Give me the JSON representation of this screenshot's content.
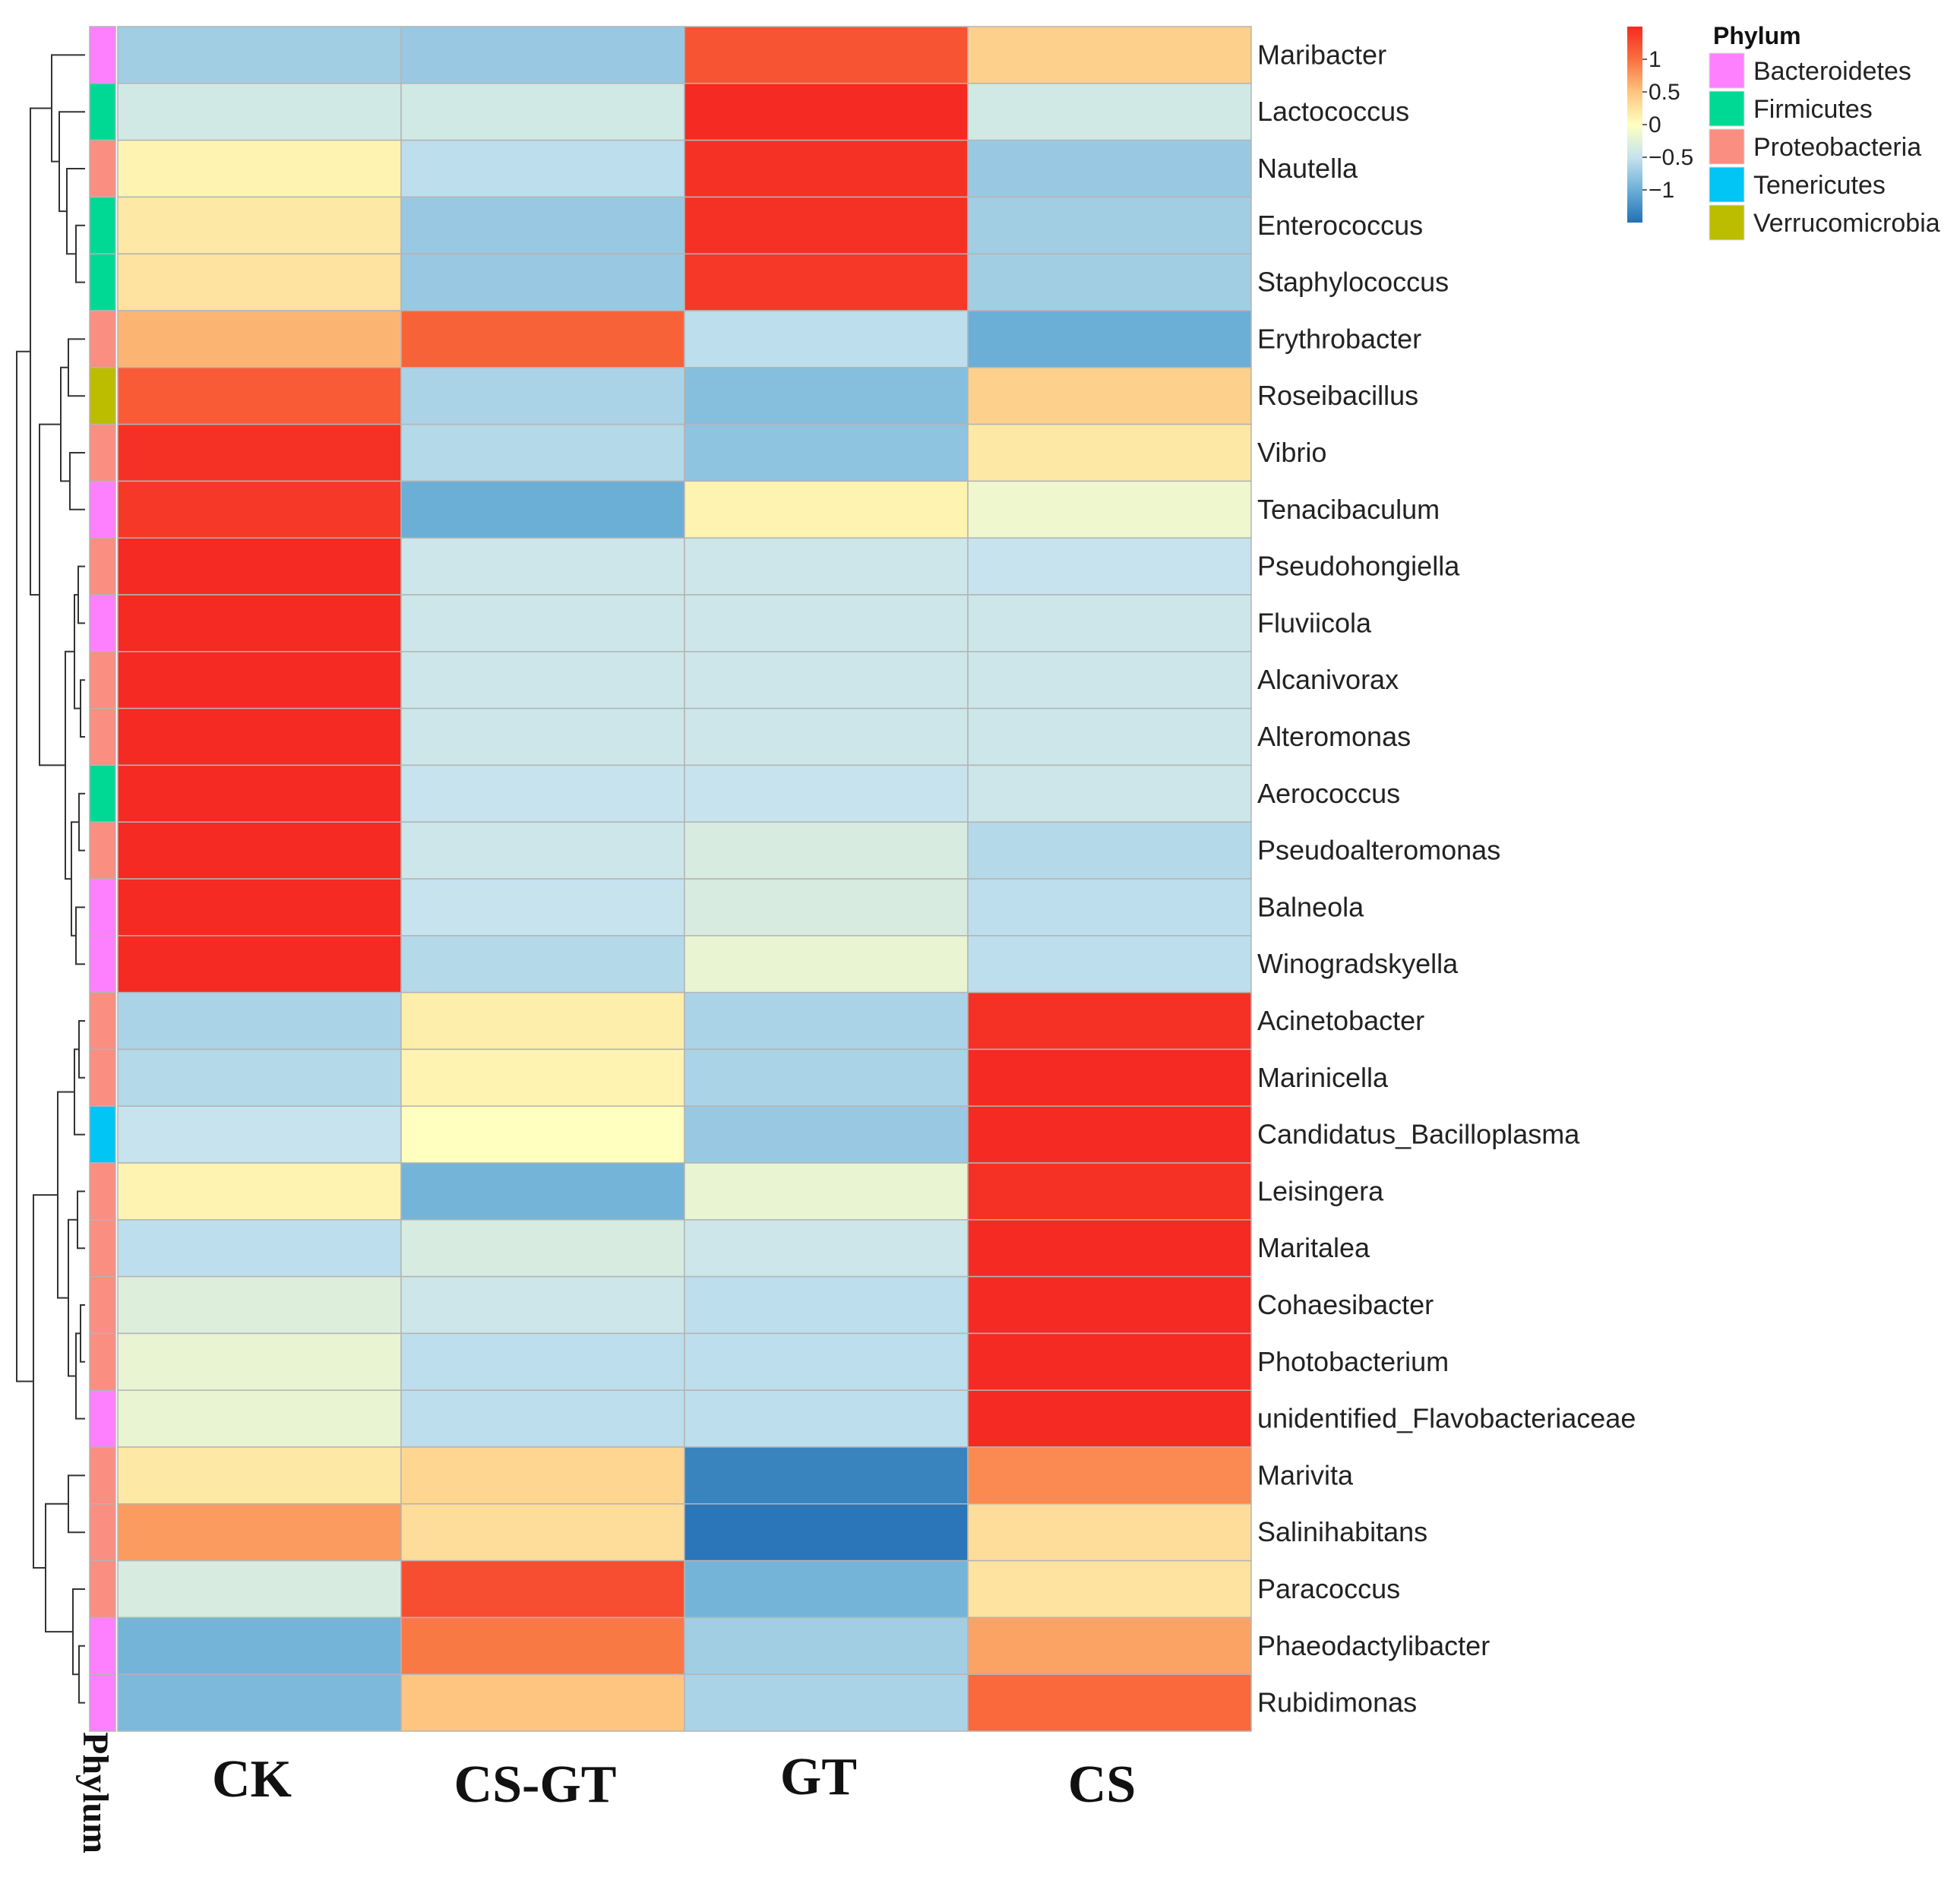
{
  "chart_data": {
    "type": "heatmap",
    "columns": [
      "CK",
      "CS-GT",
      "GT",
      "CS"
    ],
    "rows": [
      "Maribacter",
      "Lactococcus",
      "Nautella",
      "Enterococcus",
      "Staphylococcus",
      "Erythrobacter",
      "Roseibacillus",
      "Vibrio",
      "Tenacibaculum",
      "Pseudohongiella",
      "Fluviicola",
      "Alcanivorax",
      "Alteromonas",
      "Aerococcus",
      "Pseudoalteromonas",
      "Balneola",
      "Winogradskyella",
      "Acinetobacter",
      "Marinicella",
      "Candidatus_Bacilloplasma",
      "Leisingera",
      "Maritalea",
      "Cohaesibacter",
      "Photobacterium",
      "unidentified_Flavobacteriaceae",
      "Marivita",
      "Salinihabitans",
      "Paracoccus",
      "Phaeodactylibacter",
      "Rubidimonas"
    ],
    "phylum": [
      "Bacteroidetes",
      "Firmicutes",
      "Proteobacteria",
      "Firmicutes",
      "Firmicutes",
      "Proteobacteria",
      "Verrucomicrobia",
      "Proteobacteria",
      "Bacteroidetes",
      "Proteobacteria",
      "Bacteroidetes",
      "Proteobacteria",
      "Proteobacteria",
      "Firmicutes",
      "Proteobacteria",
      "Bacteroidetes",
      "Bacteroidetes",
      "Proteobacteria",
      "Proteobacteria",
      "Tenericutes",
      "Proteobacteria",
      "Proteobacteria",
      "Proteobacteria",
      "Proteobacteria",
      "Bacteroidetes",
      "Proteobacteria",
      "Proteobacteria",
      "Proteobacteria",
      "Bacteroidetes",
      "Bacteroidetes"
    ],
    "values": [
      [
        -0.7,
        -0.75,
        1.2,
        0.4
      ],
      [
        -0.4,
        -0.4,
        1.5,
        -0.4
      ],
      [
        0.1,
        -0.55,
        1.45,
        -0.75
      ],
      [
        0.2,
        -0.75,
        1.45,
        -0.7
      ],
      [
        0.25,
        -0.75,
        1.4,
        -0.7
      ],
      [
        0.6,
        1.1,
        -0.55,
        -1.0
      ],
      [
        1.15,
        -0.65,
        -0.85,
        0.4
      ],
      [
        1.45,
        -0.6,
        -0.8,
        0.2
      ],
      [
        1.4,
        -1.0,
        0.1,
        -0.15
      ],
      [
        1.5,
        -0.45,
        -0.45,
        -0.5
      ],
      [
        1.5,
        -0.45,
        -0.45,
        -0.45
      ],
      [
        1.5,
        -0.45,
        -0.45,
        -0.45
      ],
      [
        1.5,
        -0.45,
        -0.45,
        -0.45
      ],
      [
        1.5,
        -0.5,
        -0.5,
        -0.45
      ],
      [
        1.5,
        -0.45,
        -0.35,
        -0.6
      ],
      [
        1.5,
        -0.5,
        -0.35,
        -0.55
      ],
      [
        1.5,
        -0.6,
        -0.2,
        -0.55
      ],
      [
        -0.65,
        0.15,
        -0.65,
        1.45
      ],
      [
        -0.6,
        0.1,
        -0.65,
        1.5
      ],
      [
        -0.5,
        0.0,
        -0.75,
        1.5
      ],
      [
        0.1,
        -0.95,
        -0.2,
        1.45
      ],
      [
        -0.55,
        -0.35,
        -0.45,
        1.5
      ],
      [
        -0.3,
        -0.45,
        -0.55,
        1.5
      ],
      [
        -0.2,
        -0.55,
        -0.55,
        1.5
      ],
      [
        -0.2,
        -0.55,
        -0.55,
        1.5
      ],
      [
        0.2,
        0.35,
        -1.35,
        0.85
      ],
      [
        0.75,
        0.3,
        -1.45,
        0.3
      ],
      [
        -0.35,
        1.25,
        -0.95,
        0.25
      ],
      [
        -0.95,
        0.95,
        -0.7,
        0.7
      ],
      [
        -0.9,
        0.5,
        -0.65,
        1.05
      ]
    ],
    "color_scale": {
      "ticks": [
        "1",
        "0.5",
        "0",
        "−0.5",
        "−1"
      ],
      "range": [
        -1.5,
        1.5
      ],
      "low": "#2370B5",
      "mid": "#FFFFBF",
      "high": "#F52A22"
    },
    "legend": {
      "title": "Phylum",
      "items": [
        {
          "name": "Bacteroidetes",
          "color": "#FF80FF"
        },
        {
          "name": "Firmicutes",
          "color": "#00D994"
        },
        {
          "name": "Proteobacteria",
          "color": "#FA8E80"
        },
        {
          "name": "Tenericutes",
          "color": "#00C5F5"
        },
        {
          "name": "Verrucomicrobia",
          "color": "#BCBD00"
        }
      ]
    },
    "annotation_label": "Phylum"
  }
}
